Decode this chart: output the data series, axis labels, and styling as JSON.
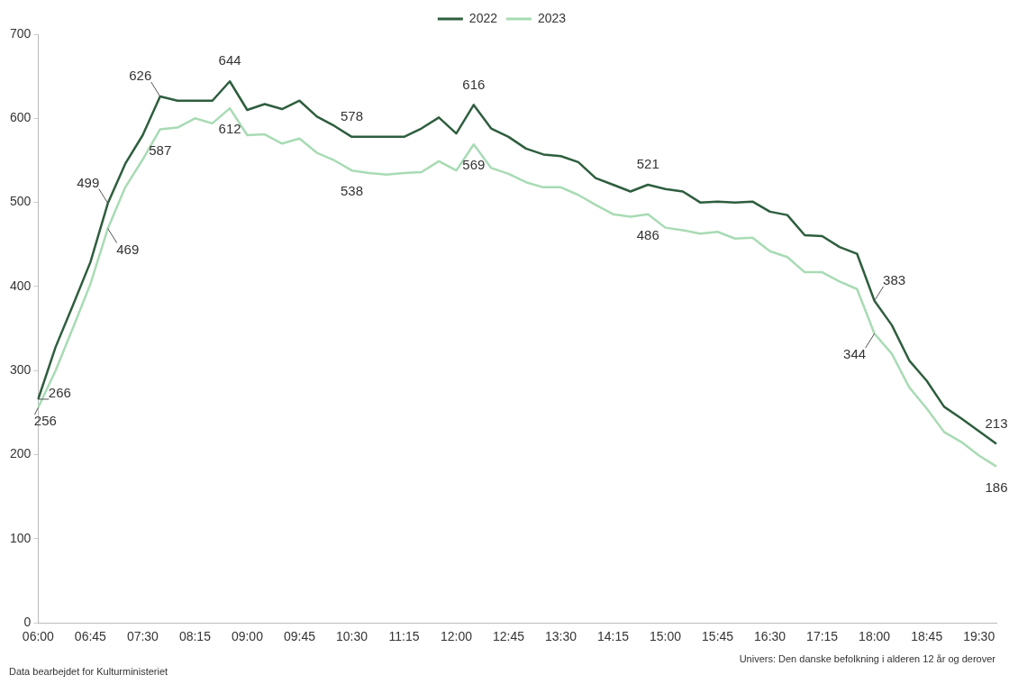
{
  "chart_data": {
    "type": "line",
    "categories": [
      "06:00",
      null,
      null,
      "06:45",
      null,
      null,
      "07:30",
      null,
      null,
      "08:15",
      null,
      null,
      "09:00",
      null,
      null,
      "09:45",
      null,
      null,
      "10:30",
      null,
      null,
      "11:15",
      null,
      null,
      "12:00",
      null,
      null,
      "12:45",
      null,
      null,
      "13:30",
      null,
      null,
      "14:15",
      null,
      null,
      "15:00",
      null,
      null,
      "15:45",
      null,
      null,
      "16:30",
      null,
      null,
      "17:15",
      null,
      null,
      "18:00",
      null,
      null,
      "18:45",
      null,
      null,
      "19:30",
      null
    ],
    "series": [
      {
        "name": "2022",
        "color": "#2e5e3e",
        "values": [
          266,
          328,
          378,
          429,
          499,
          546,
          580,
          626,
          621,
          621,
          621,
          644,
          610,
          617,
          611,
          621,
          602,
          591,
          578,
          578,
          578,
          578,
          588,
          601,
          582,
          616,
          588,
          578,
          564,
          557,
          555,
          548,
          529,
          521,
          513,
          521,
          516,
          513,
          500,
          501,
          500,
          501,
          489,
          485,
          461,
          460,
          447,
          439,
          383,
          354,
          312,
          288,
          257,
          243,
          228,
          213
        ],
        "value_labels": [
          "266",
          null,
          null,
          null,
          "499",
          null,
          null,
          "626",
          null,
          null,
          null,
          "644",
          null,
          null,
          null,
          null,
          null,
          null,
          "578",
          null,
          null,
          null,
          null,
          null,
          null,
          "616",
          null,
          null,
          null,
          null,
          null,
          null,
          null,
          null,
          null,
          "521",
          null,
          null,
          null,
          null,
          null,
          null,
          null,
          null,
          null,
          null,
          null,
          null,
          "383",
          null,
          null,
          null,
          null,
          null,
          null,
          "213"
        ]
      },
      {
        "name": "2023",
        "color": "#a8dbb4",
        "values": [
          256,
          300,
          351,
          403,
          469,
          518,
          551,
          587,
          589,
          600,
          594,
          612,
          580,
          581,
          570,
          576,
          559,
          550,
          538,
          535,
          533,
          535,
          536,
          549,
          538,
          569,
          541,
          534,
          524,
          518,
          518,
          509,
          497,
          486,
          483,
          486,
          470,
          467,
          463,
          465,
          457,
          458,
          442,
          435,
          417,
          417,
          406,
          397,
          344,
          320,
          280,
          255,
          227,
          215,
          199,
          186
        ],
        "value_labels": [
          "256",
          null,
          null,
          null,
          "469",
          null,
          null,
          "587",
          null,
          null,
          null,
          "612",
          null,
          null,
          null,
          null,
          null,
          null,
          "538",
          null,
          null,
          null,
          null,
          null,
          null,
          "569",
          null,
          null,
          null,
          null,
          null,
          null,
          null,
          null,
          null,
          "486",
          null,
          null,
          null,
          null,
          null,
          null,
          null,
          null,
          null,
          null,
          null,
          null,
          "344",
          null,
          null,
          null,
          null,
          null,
          null,
          "186"
        ]
      }
    ],
    "ylim": [
      0,
      700
    ],
    "yticks": [
      0,
      100,
      200,
      300,
      400,
      500,
      600,
      700
    ],
    "grid": false,
    "legend": "top",
    "marker": "none",
    "line_style": "solid",
    "annotations": [
      "Data bearbejdet for Kulturministeriet",
      "Univers: Den danske befolkning i alderen 12 år og derover"
    ]
  }
}
